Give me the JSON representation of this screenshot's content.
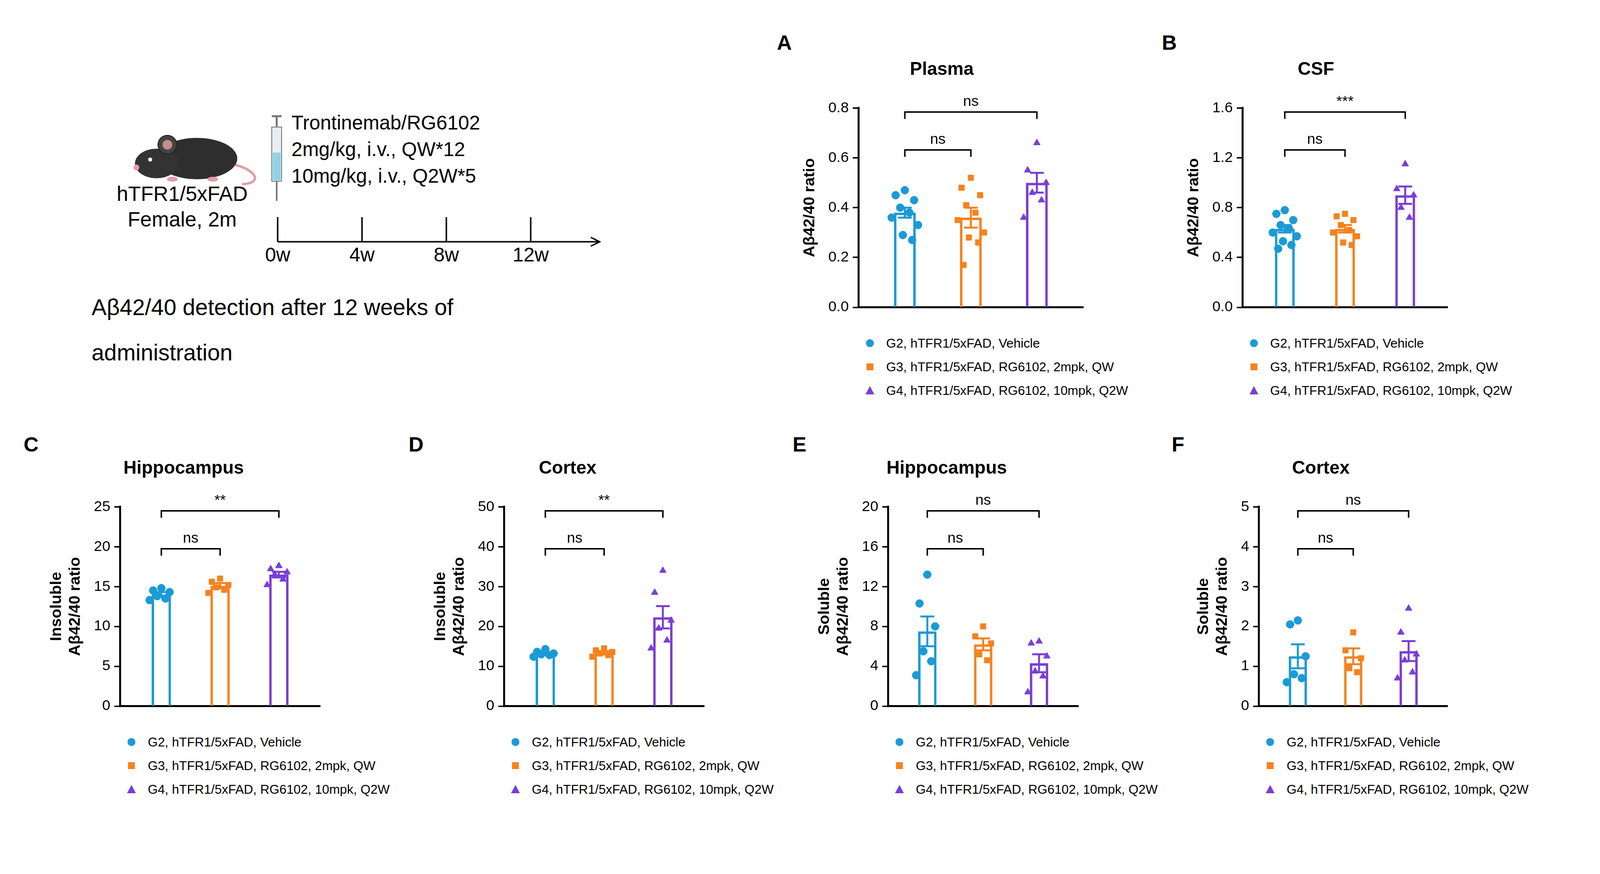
{
  "schematic": {
    "subject": [
      "hTFR1/5xFAD",
      "Female, 2m"
    ],
    "drug": "Trontinemab/RG6102",
    "doses": [
      "2mg/kg, i.v., QW*12",
      "10mg/kg, i.v., Q2W*5"
    ],
    "timeline": [
      "0w",
      "4w",
      "8w",
      "12w"
    ],
    "caption": "Aβ42/40 detection after 12 weeks of administration"
  },
  "chart_data": [
    {
      "type": "bar",
      "panel": "A",
      "title": "Plasma",
      "y_label": "Aβ42/40 ratio",
      "ylim": [
        0,
        0.8
      ],
      "yticks": [
        {
          "value": 0,
          "label": "0.0"
        },
        0.2,
        0.4,
        0.6,
        0.8
      ],
      "tick_labels": "y",
      "legend": "bottom",
      "series": [
        {
          "name": "G2, hTFR1/5xFAD, Vehicle",
          "color": "#1b9ad6",
          "marker": "circle",
          "value": 0.38,
          "error": 0.02,
          "points": [
            0.47,
            0.45,
            0.43,
            0.4,
            0.38,
            0.36,
            0.33,
            0.29,
            0.27
          ]
        },
        {
          "name": "G3, hTFR1/5xFAD, RG6102, 2mpk, QW",
          "color": "#f5821f",
          "marker": "square",
          "value": 0.36,
          "error": 0.04,
          "points": [
            0.52,
            0.48,
            0.45,
            0.41,
            0.38,
            0.35,
            0.3,
            0.28,
            0.26,
            0.17
          ]
        },
        {
          "name": "G4, hTFR1/5xFAD, RG6102, 10mpk, Q2W",
          "color": "#7a3ed6",
          "marker": "triangle",
          "value": 0.5,
          "error": 0.04,
          "points": [
            0.66,
            0.55,
            0.5,
            0.46,
            0.43,
            0.36
          ]
        }
      ],
      "comparisons": [
        {
          "groups": [
            0,
            1
          ],
          "label": "ns"
        },
        {
          "groups": [
            0,
            2
          ],
          "label": "ns"
        }
      ]
    },
    {
      "type": "bar",
      "panel": "B",
      "title": "CSF",
      "y_label": "Aβ42/40 ratio",
      "ylim": [
        0,
        1.6
      ],
      "yticks": [
        {
          "value": 0,
          "label": "0.0"
        },
        0.4,
        0.8,
        1.2,
        1.6
      ],
      "tick_labels": "y",
      "legend": "bottom",
      "series": [
        {
          "name": "G2, hTFR1/5xFAD, Vehicle",
          "color": "#1b9ad6",
          "marker": "circle",
          "value": 0.63,
          "error": 0.03,
          "points": [
            0.78,
            0.75,
            0.7,
            0.66,
            0.63,
            0.6,
            0.57,
            0.53,
            0.5,
            0.47
          ]
        },
        {
          "name": "G3, hTFR1/5xFAD, RG6102, 2mpk, QW",
          "color": "#f5821f",
          "marker": "square",
          "value": 0.63,
          "error": 0.03,
          "points": [
            0.75,
            0.73,
            0.7,
            0.66,
            0.62,
            0.6,
            0.57,
            0.52,
            0.5
          ]
        },
        {
          "name": "G4, hTFR1/5xFAD, RG6102, 10mpk, Q2W",
          "color": "#7a3ed6",
          "marker": "triangle",
          "value": 0.9,
          "error": 0.07,
          "points": [
            1.15,
            0.95,
            0.9,
            0.8,
            0.72
          ]
        }
      ],
      "comparisons": [
        {
          "groups": [
            0,
            1
          ],
          "label": "ns"
        },
        {
          "groups": [
            0,
            2
          ],
          "label": "***"
        }
      ]
    },
    {
      "type": "bar",
      "panel": "C",
      "title": "Hippocampus",
      "y_label": [
        "Insoluble",
        "Aβ42/40 ratio"
      ],
      "ylim": [
        0,
        25
      ],
      "yticks": [
        0,
        5,
        10,
        15,
        20,
        25
      ],
      "tick_labels": "y",
      "legend": "bottom",
      "series": [
        {
          "name": "G2, hTFR1/5xFAD, Vehicle",
          "color": "#1b9ad6",
          "marker": "circle",
          "value": 14.0,
          "error": 0.3,
          "points": [
            14.8,
            14.5,
            14.3,
            13.8,
            13.5,
            13.3
          ]
        },
        {
          "name": "G3, hTFR1/5xFAD, RG6102, 2mpk, QW",
          "color": "#f5821f",
          "marker": "square",
          "value": 15.1,
          "error": 0.35,
          "points": [
            16.0,
            15.6,
            15.2,
            14.9,
            14.6,
            14.2
          ]
        },
        {
          "name": "G4, hTFR1/5xFAD, RG6102, 10mpk, Q2W",
          "color": "#7a3ed6",
          "marker": "triangle",
          "value": 16.5,
          "error": 0.35,
          "points": [
            17.6,
            17.2,
            16.8,
            16.5,
            15.9,
            15.2
          ]
        }
      ],
      "comparisons": [
        {
          "groups": [
            0,
            1
          ],
          "label": "ns"
        },
        {
          "groups": [
            0,
            2
          ],
          "label": "**"
        }
      ]
    },
    {
      "type": "bar",
      "panel": "D",
      "title": "Cortex",
      "y_label": [
        "Insoluble",
        "Aβ42/40 ratio"
      ],
      "ylim": [
        0,
        50
      ],
      "yticks": [
        0,
        10,
        20,
        30,
        40,
        50
      ],
      "tick_labels": "y",
      "legend": "bottom",
      "series": [
        {
          "name": "G2, hTFR1/5xFAD, Vehicle",
          "color": "#1b9ad6",
          "marker": "circle",
          "value": 13.2,
          "error": 0.3,
          "points": [
            14.3,
            13.6,
            13.2,
            13.0,
            12.8,
            12.4
          ]
        },
        {
          "name": "G3, hTFR1/5xFAD, RG6102, 2mpk, QW",
          "color": "#f5821f",
          "marker": "square",
          "value": 13.4,
          "error": 0.4,
          "points": [
            14.5,
            14.0,
            13.6,
            13.2,
            12.8,
            12.4
          ]
        },
        {
          "name": "G4, hTFR1/5xFAD, RG6102, 10mpk, Q2W",
          "color": "#7a3ed6",
          "marker": "triangle",
          "value": 22.3,
          "error": 2.8,
          "points": [
            34.0,
            28.5,
            21.5,
            19.5,
            16.5,
            14.5
          ]
        }
      ],
      "comparisons": [
        {
          "groups": [
            0,
            1
          ],
          "label": "ns"
        },
        {
          "groups": [
            0,
            2
          ],
          "label": "**"
        }
      ]
    },
    {
      "type": "bar",
      "panel": "E",
      "title": "Hippocampus",
      "y_label": [
        "Soluble",
        "Aβ42/40 ratio"
      ],
      "ylim": [
        0,
        20
      ],
      "yticks": [
        0,
        4,
        8,
        12,
        16,
        20
      ],
      "tick_labels": "y",
      "legend": "bottom",
      "series": [
        {
          "name": "G2, hTFR1/5xFAD, Vehicle",
          "color": "#1b9ad6",
          "marker": "circle",
          "value": 7.5,
          "error": 1.5,
          "points": [
            13.2,
            10.3,
            8.0,
            5.5,
            4.5,
            3.1
          ]
        },
        {
          "name": "G3, hTFR1/5xFAD, RG6102, 2mpk, QW",
          "color": "#f5821f",
          "marker": "square",
          "value": 6.2,
          "error": 0.6,
          "points": [
            8.0,
            7.0,
            6.3,
            5.2,
            4.6
          ]
        },
        {
          "name": "G4, hTFR1/5xFAD, RG6102, 10mpk, Q2W",
          "color": "#7a3ed6",
          "marker": "triangle",
          "value": 4.3,
          "error": 0.9,
          "points": [
            6.5,
            6.3,
            5.0,
            3.5,
            3.0,
            1.4
          ]
        }
      ],
      "comparisons": [
        {
          "groups": [
            0,
            1
          ],
          "label": "ns"
        },
        {
          "groups": [
            0,
            2
          ],
          "label": "ns"
        }
      ]
    },
    {
      "type": "bar",
      "panel": "F",
      "title": "Cortex",
      "y_label": [
        "Soluble",
        "Aβ42/40 ratio"
      ],
      "ylim": [
        0,
        5
      ],
      "yticks": [
        0,
        1,
        2,
        3,
        4,
        5
      ],
      "tick_labels": "y",
      "legend": "bottom",
      "series": [
        {
          "name": "G2, hTFR1/5xFAD, Vehicle",
          "color": "#1b9ad6",
          "marker": "circle",
          "value": 1.25,
          "error": 0.3,
          "points": [
            2.15,
            2.05,
            1.25,
            0.8,
            0.7,
            0.6
          ]
        },
        {
          "name": "G3, hTFR1/5xFAD, RG6102, 2mpk, QW",
          "color": "#f5821f",
          "marker": "square",
          "value": 1.25,
          "error": 0.2,
          "points": [
            1.85,
            1.4,
            1.2,
            0.95,
            0.85
          ]
        },
        {
          "name": "G4, hTFR1/5xFAD, RG6102, 10mpk, Q2W",
          "color": "#7a3ed6",
          "marker": "triangle",
          "value": 1.38,
          "error": 0.25,
          "points": [
            2.45,
            1.85,
            1.3,
            1.15,
            0.85,
            0.7
          ]
        }
      ],
      "comparisons": [
        {
          "groups": [
            0,
            1
          ],
          "label": "ns"
        },
        {
          "groups": [
            0,
            2
          ],
          "label": "ns"
        }
      ]
    }
  ]
}
